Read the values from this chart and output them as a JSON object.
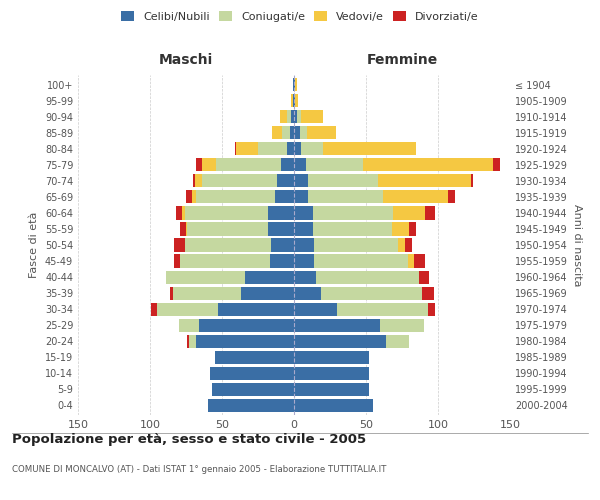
{
  "age_groups": [
    "0-4",
    "5-9",
    "10-14",
    "15-19",
    "20-24",
    "25-29",
    "30-34",
    "35-39",
    "40-44",
    "45-49",
    "50-54",
    "55-59",
    "60-64",
    "65-69",
    "70-74",
    "75-79",
    "80-84",
    "85-89",
    "90-94",
    "95-99",
    "100+"
  ],
  "birth_years": [
    "2000-2004",
    "1995-1999",
    "1990-1994",
    "1985-1989",
    "1980-1984",
    "1975-1979",
    "1970-1974",
    "1965-1969",
    "1960-1964",
    "1955-1959",
    "1950-1954",
    "1945-1949",
    "1940-1944",
    "1935-1939",
    "1930-1934",
    "1925-1929",
    "1920-1924",
    "1915-1919",
    "1910-1914",
    "1905-1909",
    "≤ 1904"
  ],
  "colors": {
    "celibi": "#3a6ea5",
    "coniugati": "#c5d8a0",
    "vedovi": "#f5c842",
    "divorziati": "#cc2222"
  },
  "maschi": {
    "celibi": [
      60,
      57,
      58,
      55,
      68,
      66,
      53,
      37,
      34,
      17,
      16,
      18,
      18,
      13,
      12,
      9,
      5,
      3,
      2,
      1,
      1
    ],
    "coniugati": [
      0,
      0,
      0,
      0,
      5,
      14,
      42,
      47,
      55,
      62,
      60,
      56,
      58,
      55,
      52,
      45,
      20,
      5,
      3,
      0,
      0
    ],
    "vedovi": [
      0,
      0,
      0,
      0,
      0,
      0,
      0,
      0,
      0,
      0,
      0,
      1,
      2,
      3,
      5,
      10,
      15,
      7,
      5,
      1,
      0
    ],
    "divorziati": [
      0,
      0,
      0,
      0,
      1,
      0,
      4,
      2,
      0,
      4,
      7,
      4,
      4,
      4,
      1,
      4,
      1,
      0,
      0,
      0,
      0
    ]
  },
  "femmine": {
    "celibi": [
      55,
      52,
      52,
      52,
      64,
      60,
      30,
      19,
      15,
      14,
      14,
      13,
      13,
      10,
      10,
      8,
      5,
      4,
      2,
      1,
      1
    ],
    "coniugati": [
      0,
      0,
      0,
      0,
      16,
      30,
      63,
      70,
      72,
      65,
      58,
      55,
      56,
      52,
      48,
      40,
      15,
      5,
      3,
      0,
      0
    ],
    "vedovi": [
      0,
      0,
      0,
      0,
      0,
      0,
      0,
      0,
      0,
      4,
      5,
      12,
      22,
      45,
      65,
      90,
      65,
      20,
      15,
      2,
      1
    ],
    "divorziati": [
      0,
      0,
      0,
      0,
      0,
      0,
      5,
      8,
      7,
      8,
      5,
      5,
      7,
      5,
      1,
      5,
      0,
      0,
      0,
      0,
      0
    ]
  },
  "title": "Popolazione per età, sesso e stato civile - 2005",
  "subtitle": "COMUNE DI MONCALVO (AT) - Dati ISTAT 1° gennaio 2005 - Elaborazione TUTTITALIA.IT",
  "xlabel_left": "Maschi",
  "xlabel_right": "Femmine",
  "ylabel_left": "Fasce di età",
  "ylabel_right": "Anni di nascita",
  "xlim": 150,
  "legend_labels": [
    "Celibi/Nubili",
    "Coniugati/e",
    "Vedovi/e",
    "Divorziati/e"
  ],
  "background_color": "#ffffff",
  "grid_color": "#cccccc"
}
